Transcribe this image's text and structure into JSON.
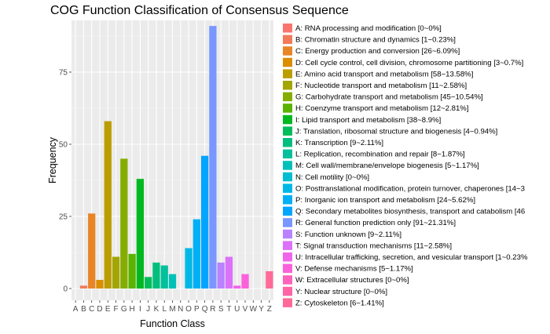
{
  "chart_data": {
    "type": "bar",
    "title": "COG Function Classification of Consensus Sequence",
    "xlabel": "Function Class",
    "ylabel": "Frequency",
    "ylim": [
      0,
      95
    ],
    "yticks": [
      0,
      25,
      50,
      75
    ],
    "grid": true,
    "legend_position": "right",
    "categories": [
      "A",
      "B",
      "C",
      "D",
      "E",
      "F",
      "G",
      "H",
      "I",
      "J",
      "K",
      "L",
      "M",
      "N",
      "O",
      "P",
      "Q",
      "R",
      "S",
      "T",
      "U",
      "V",
      "W",
      "Y",
      "Z"
    ],
    "values": [
      0,
      1,
      26,
      3,
      58,
      11,
      45,
      12,
      38,
      4,
      9,
      8,
      5,
      0,
      14,
      24,
      46,
      91,
      9,
      11,
      1,
      5,
      0,
      0,
      6
    ],
    "colors": [
      "#F8766D",
      "#F37B59",
      "#E88526",
      "#DB8E00",
      "#BB9D00",
      "#A3A500",
      "#85AD00",
      "#5BB300",
      "#00B81F",
      "#00BC59",
      "#00BF7D",
      "#00C19C",
      "#00C0B8",
      "#00BDD0",
      "#00B8E5",
      "#00B0F6",
      "#00A5FF",
      "#7997FF",
      "#B983FF",
      "#DC71FA",
      "#F066EA",
      "#FA62DB",
      "#FF62BC",
      "#FF64A5",
      "#FF6A98"
    ],
    "legend": [
      "A: RNA processing and modification [0~0%]",
      "B: Chromatin structure and dynamics [1~0.23%]",
      "C: Energy production and conversion [26~6.09%]",
      "D: Cell cycle control, cell division, chromosome partitioning [3~0.7%]",
      "E: Amino acid transport and metabolism [58~13.58%]",
      "F: Nucleotide transport and metabolism [11~2.58%]",
      "G: Carbohydrate transport and metabolism [45~10.54%]",
      "H: Coenzyme transport and metabolism [12~2.81%]",
      "I: Lipid transport and metabolism [38~8.9%]",
      "J: Translation, ribosomal structure and biogenesis [4~0.94%]",
      "K: Transcription [9~2.11%]",
      "L: Replication, recombination and repair [8~1.87%]",
      "M: Cell wall/membrane/envelope biogenesis [5~1.17%]",
      "N: Cell motility [0~0%]",
      "O: Posttranslational modification, protein turnover, chaperones [14~3",
      "P: Inorganic ion transport and metabolism [24~5.62%]",
      "Q: Secondary metabolites biosynthesis, transport and catabolism [46",
      "R: General function prediction only [91~21.31%]",
      "S: Function unknown [9~2.11%]",
      "T: Signal transduction mechanisms [11~2.58%]",
      "U: Intracellular trafficking, secretion, and vesicular transport [1~0.23%",
      "V: Defense mechanisms [5~1.17%]",
      "W: Extracellular structures [0~0%]",
      "Y: Nuclear structure [0~0%]",
      "Z: Cytoskeleton [6~1.41%]"
    ]
  }
}
